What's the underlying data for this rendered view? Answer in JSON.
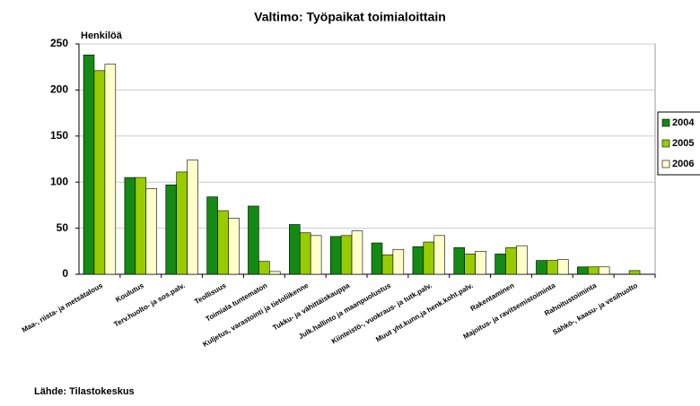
{
  "chart_data": {
    "type": "bar",
    "title": "Valtimo: Työpaikat toimialoittain",
    "y_label": "Henkilöä",
    "source": "Lähde: Tilastokeskus",
    "categories": [
      "Maa-, riista- ja metsätalous",
      "Koulutus",
      "Terv.huolto- ja sos.palv.",
      "Teollisuus",
      "Toimiala tuntematon",
      "Kuljetus, varastointi ja tietoliikenne",
      "Tukku- ja vähittäiskauppa",
      "Julk.hallinto ja maanpuolustus",
      "Kiinteistö-, vuokraus- ja tutk.palv.",
      "Muut yht.kunn.ja henk.koht.palv.",
      "Rakentaminen",
      "Majoitus- ja ravitsemistoiminta",
      "Rahoitustoiminta",
      "Sähkö-, kaasu- ja vesihuolto"
    ],
    "series": [
      {
        "name": "2004",
        "color": "#138a13",
        "values": [
          238,
          105,
          97,
          84,
          74,
          54,
          41,
          34,
          30,
          29,
          22,
          15,
          8,
          0
        ]
      },
      {
        "name": "2005",
        "color": "#99cc00",
        "values": [
          221,
          105,
          111,
          69,
          14,
          45,
          42,
          21,
          35,
          22,
          29,
          15,
          8,
          4
        ]
      },
      {
        "name": "2006",
        "color": "#ffffcc",
        "values": [
          228,
          93,
          124,
          61,
          3,
          42,
          47,
          27,
          42,
          25,
          31,
          16,
          8,
          0
        ]
      }
    ],
    "ylim": [
      0,
      250
    ],
    "yticks": [
      0,
      50,
      100,
      150,
      200,
      250
    ],
    "grid": true,
    "legend": "right"
  }
}
